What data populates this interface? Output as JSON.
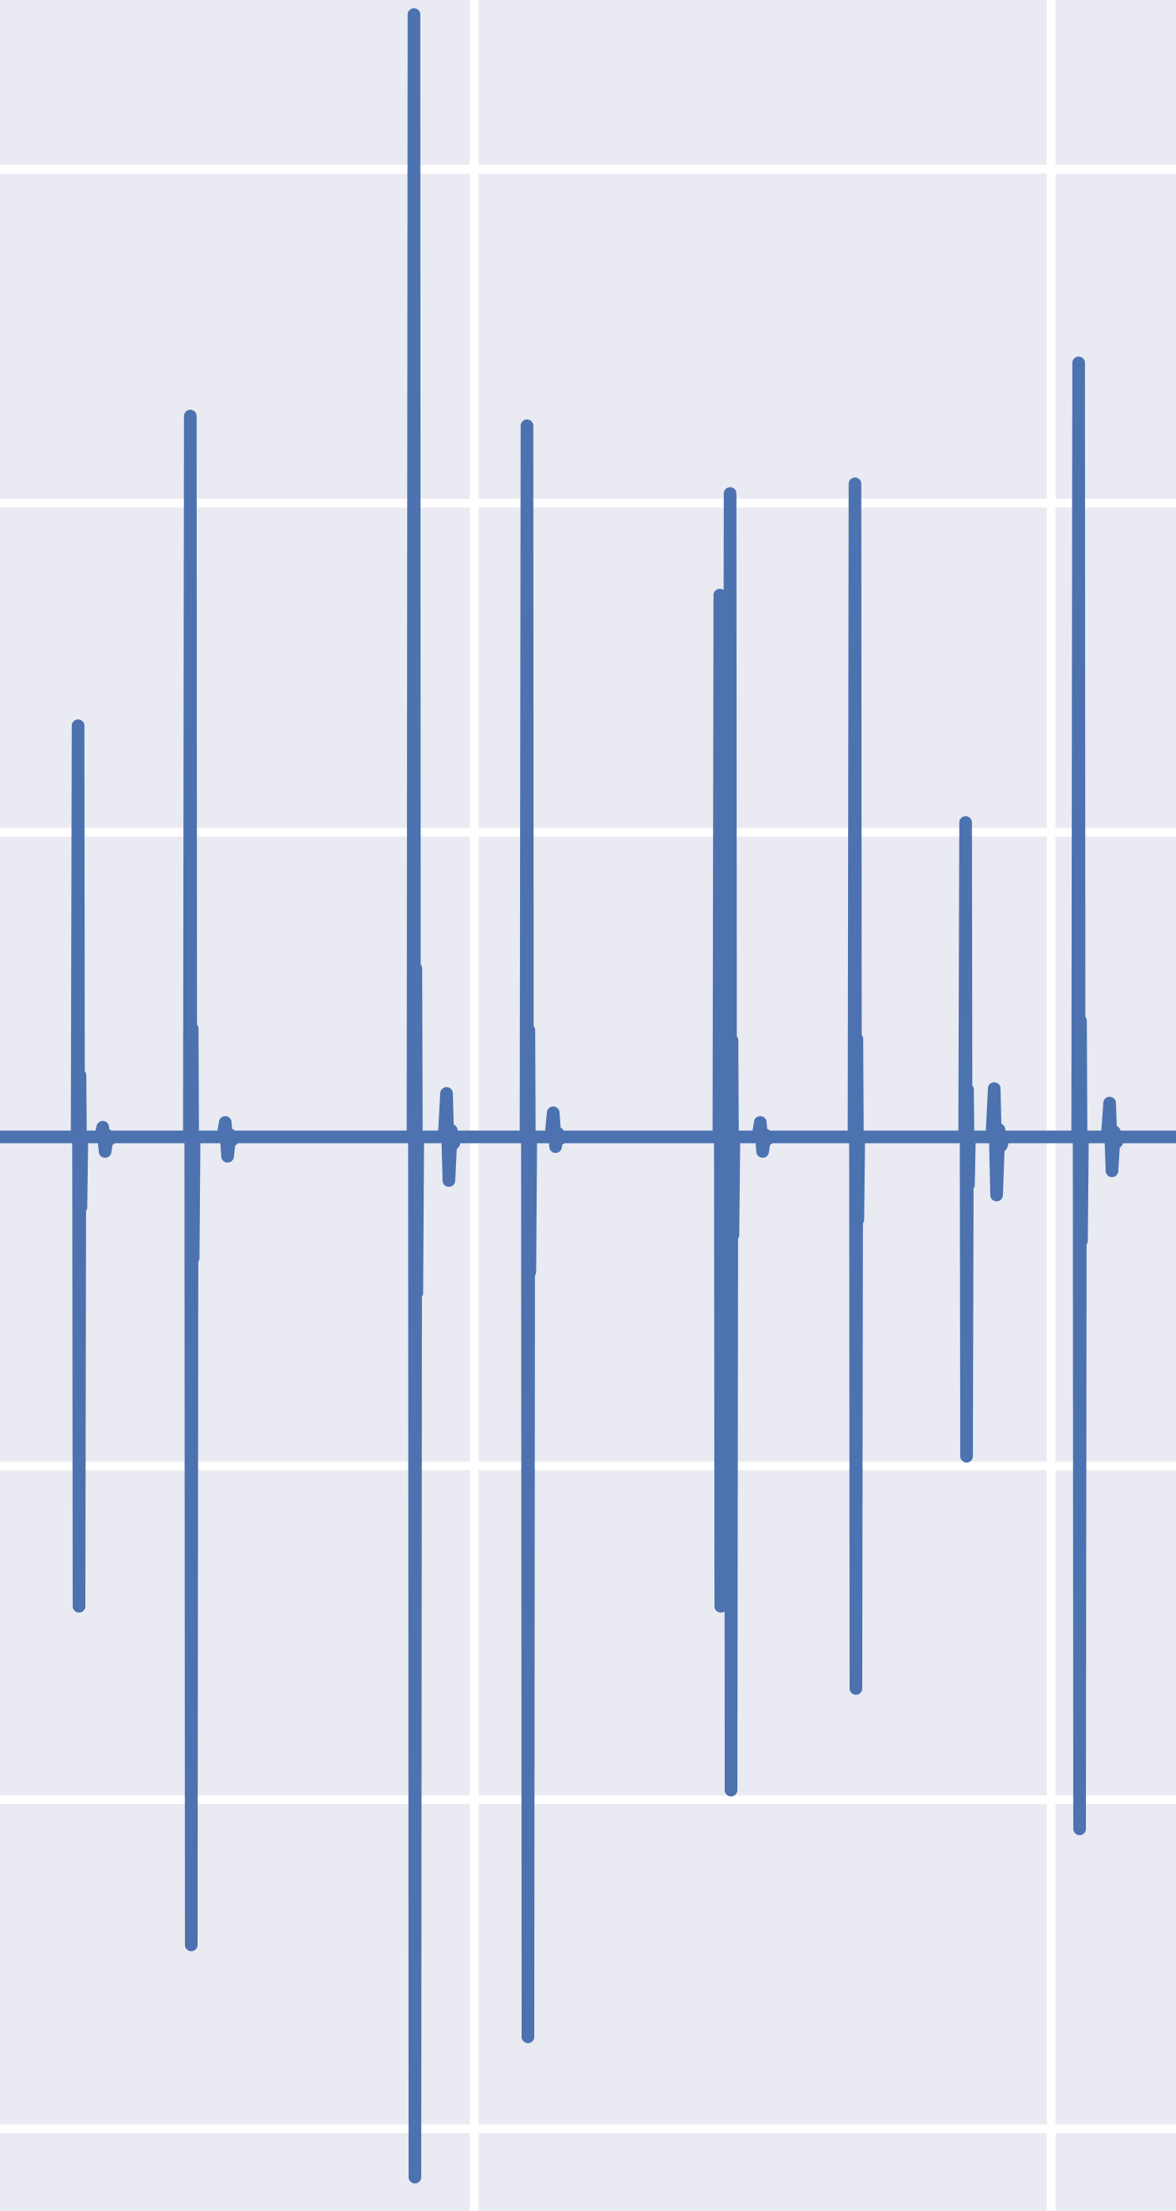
{
  "chart_data": {
    "type": "line",
    "title": "",
    "xlabel": "",
    "ylabel": "",
    "grid": true,
    "legend": "none",
    "colors": {
      "background": "#EAEAF2",
      "grid": "#FFFFFF",
      "series": "#4C72B0"
    },
    "xlim": [
      0,
      1488
    ],
    "ylim": [
      -2.22,
      2.35
    ],
    "x_gridlines": [
      600,
      1330
    ],
    "y_gridlines": [
      2.0,
      1.31,
      0.63,
      -0.68,
      -1.37,
      -2.05
    ],
    "baseline": 0.0,
    "series": [
      {
        "spikes": [
          {
            "x": 100,
            "max": 0.85,
            "min": -0.97
          },
          {
            "x": 242,
            "max": 1.49,
            "min": -1.67
          },
          {
            "x": 525,
            "max": 2.32,
            "min": -2.15
          },
          {
            "x": 668,
            "max": 1.47,
            "min": -1.86
          },
          {
            "x": 912,
            "max": 1.12,
            "min": -0.97
          },
          {
            "x": 925,
            "max": 1.33,
            "min": -1.35
          },
          {
            "x": 1083,
            "max": 1.35,
            "min": -1.14
          },
          {
            "x": 1223,
            "max": 0.65,
            "min": -0.66
          },
          {
            "x": 1366,
            "max": 1.6,
            "min": -1.43
          }
        ],
        "ripples": [
          {
            "x": 133,
            "max": 0.02,
            "min": -0.03
          },
          {
            "x": 288,
            "max": 0.03,
            "min": -0.04
          },
          {
            "x": 568,
            "max": 0.09,
            "min": -0.09
          },
          {
            "x": 703,
            "max": 0.05,
            "min": -0.02
          },
          {
            "x": 965,
            "max": 0.03,
            "min": -0.03
          },
          {
            "x": 1261,
            "max": 0.1,
            "min": -0.12
          },
          {
            "x": 1407,
            "max": 0.07,
            "min": -0.07
          }
        ]
      }
    ]
  }
}
